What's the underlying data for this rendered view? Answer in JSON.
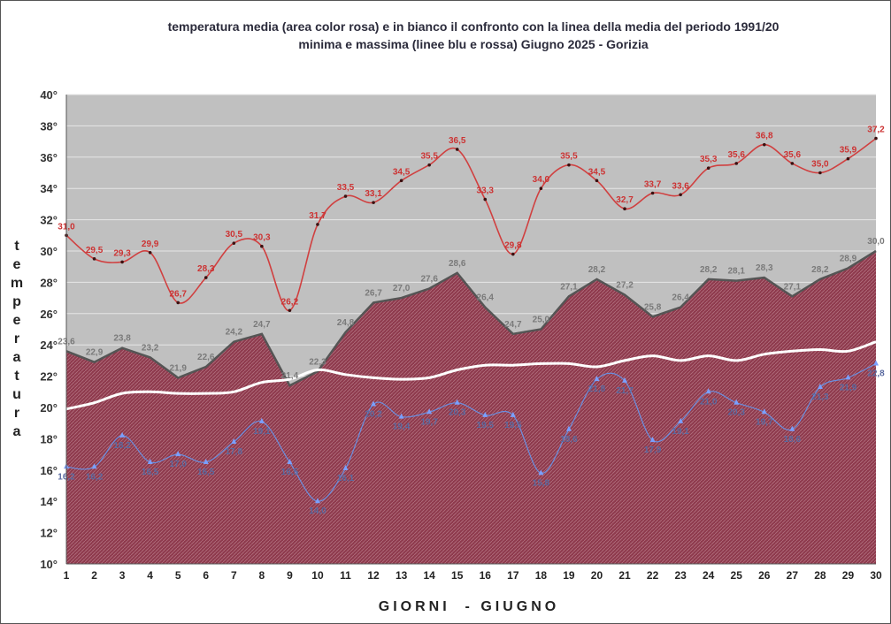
{
  "chart_data": {
    "type": "line",
    "title_line1": "temperatura media (area color rosa) e in bianco il confronto con la linea della media del periodo 1991/20",
    "title_line2": "minima e massima (linee blu e rossa) Giugno 2025 - Gorizia",
    "ylabel": "temperatura",
    "xlabel": "GIORNI  - GIUGNO",
    "ylim": [
      10,
      40
    ],
    "ytick_step": 2,
    "ytick_suffix": "°",
    "grid": true,
    "x": [
      1,
      2,
      3,
      4,
      5,
      6,
      7,
      8,
      9,
      10,
      11,
      12,
      13,
      14,
      15,
      16,
      17,
      18,
      19,
      20,
      21,
      22,
      23,
      24,
      25,
      26,
      27,
      28,
      29,
      30
    ],
    "series": [
      {
        "key": "max",
        "color": "#d04040",
        "values": [
          31.0,
          29.5,
          29.3,
          29.9,
          26.7,
          28.3,
          30.5,
          30.3,
          26.2,
          31.7,
          33.5,
          33.1,
          34.5,
          35.5,
          36.5,
          33.3,
          29.8,
          34.0,
          35.5,
          34.5,
          32.7,
          33.7,
          33.6,
          35.3,
          35.6,
          36.8,
          35.6,
          35.0,
          35.9,
          37.2
        ],
        "labels": [
          "31,0",
          "29,5",
          "29,3",
          "29,9",
          "26,7",
          "28,3",
          "30,5",
          "30,3",
          "26,2",
          "31,7",
          "33,5",
          "33,1",
          "34,5",
          "35,5",
          "36,5",
          "33,3",
          "29,8",
          "34,0",
          "35,5",
          "34,5",
          "32,7",
          "33,7",
          "33,6",
          "35,3",
          "35,6",
          "36,8",
          "35,6",
          "35,0",
          "35,9",
          "37,2"
        ]
      },
      {
        "key": "mean",
        "color": "#9b3b4e",
        "values": [
          23.6,
          22.9,
          23.8,
          23.2,
          21.9,
          22.6,
          24.2,
          24.7,
          21.4,
          22.3,
          24.8,
          26.7,
          27.0,
          27.6,
          28.6,
          26.4,
          24.7,
          25.0,
          27.1,
          28.2,
          27.2,
          25.8,
          26.4,
          28.2,
          28.1,
          28.3,
          27.1,
          28.2,
          28.9,
          30.0
        ],
        "labels": [
          "23,6",
          "22,9",
          "23,8",
          "23,2",
          "21,9",
          "22,6",
          "24,2",
          "24,7",
          "21,4",
          "22,3",
          "24,8",
          "26,7",
          "27,0",
          "27,6",
          "28,6",
          "26,4",
          "24,7",
          "25,0",
          "27,1",
          "28,2",
          "27,2",
          "25,8",
          "26,4",
          "28,2",
          "28,1",
          "28,3",
          "27,1",
          "28,2",
          "28,9",
          "30,0"
        ]
      },
      {
        "key": "min",
        "color": "#6a8fe0",
        "values": [
          16.2,
          16.2,
          18.2,
          16.5,
          17.0,
          16.5,
          17.8,
          19.1,
          16.5,
          14.0,
          16.1,
          20.2,
          19.4,
          19.7,
          20.3,
          19.5,
          19.5,
          15.8,
          18.6,
          21.8,
          21.7,
          17.9,
          19.1,
          21.0,
          20.3,
          19.7,
          18.6,
          21.3,
          21.9,
          22.8
        ],
        "labels": [
          "16,2",
          "16,2",
          "18,2",
          "16,5",
          "17,0",
          "16,5",
          "17,8",
          "19,1",
          "16,5",
          "14,0",
          "16,1",
          "20,2",
          "19,4",
          "19,7",
          "20,3",
          "19,5",
          "19,5",
          "15,8",
          "18,6",
          "21,8",
          "21,7",
          "17,9",
          "19,1",
          "21,0",
          "20,3",
          "19,7",
          "18,6",
          "21,3",
          "21,9",
          "22,8"
        ]
      },
      {
        "key": "normal",
        "color": "#ffffff",
        "values": [
          19.9,
          20.3,
          20.9,
          21.0,
          20.9,
          20.9,
          21.0,
          21.6,
          21.8,
          22.4,
          22.1,
          21.9,
          21.8,
          21.9,
          22.4,
          22.7,
          22.7,
          22.8,
          22.8,
          22.6,
          23.0,
          23.3,
          23.0,
          23.3,
          23.0,
          23.4,
          23.6,
          23.7,
          23.6,
          24.2
        ]
      }
    ]
  }
}
